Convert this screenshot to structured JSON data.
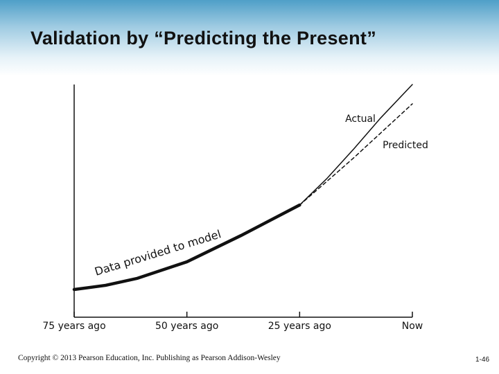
{
  "slide": {
    "title": "Validation by “Predicting the Present”",
    "copyright": "Copyright © 2013 Pearson Education, Inc. Publishing as Pearson Addison-Wesley",
    "page_number": "1-46"
  },
  "chart_data": {
    "type": "line",
    "x": [
      -75,
      -68,
      -61,
      -50,
      -38,
      -25,
      -19,
      -13,
      -7,
      0
    ],
    "xlim": [
      -75,
      0
    ],
    "xticks": [
      {
        "value": -75,
        "label": "75 years ago"
      },
      {
        "value": -50,
        "label": "50 years ago"
      },
      {
        "value": -25,
        "label": "25 years ago"
      },
      {
        "value": 0,
        "label": "Now"
      }
    ],
    "ylim": [
      0,
      100
    ],
    "series": [
      {
        "name": "Data provided to model",
        "color": "#111111",
        "values": [
          11.9,
          13.7,
          16.7,
          23.8,
          35.1,
          48.2,
          null,
          null,
          null,
          null
        ]
      },
      {
        "name": "Actual",
        "color": "#111111",
        "values": [
          null,
          null,
          null,
          null,
          null,
          48.2,
          59.5,
          72.3,
          85.7,
          100
        ]
      },
      {
        "name": "Predicted",
        "color": "#111111",
        "values": [
          null,
          null,
          null,
          null,
          null,
          48.2,
          58.3,
          68.5,
          79.2,
          91.7
        ]
      }
    ]
  }
}
